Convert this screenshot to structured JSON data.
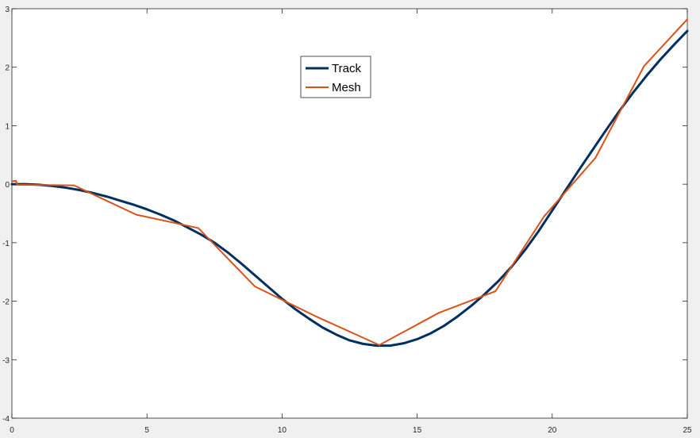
{
  "chart_data": {
    "type": "line",
    "title": "",
    "xlabel": "",
    "ylabel": "",
    "xlim": [
      0,
      25
    ],
    "ylim": [
      -4,
      3
    ],
    "xticks": [
      0,
      5,
      10,
      15,
      20,
      25
    ],
    "yticks": [
      -4,
      -3,
      -2,
      -1,
      0,
      1,
      2,
      3
    ],
    "grid": false,
    "legend": {
      "position": "top-center",
      "entries": [
        "Track",
        "Mesh"
      ]
    },
    "series": [
      {
        "name": "Track",
        "color": "#00305f",
        "x": [
          0,
          0.5,
          1,
          1.5,
          2,
          2.5,
          3,
          3.5,
          4,
          4.5,
          5,
          5.5,
          6,
          6.5,
          7,
          7.5,
          8,
          8.5,
          9,
          9.5,
          10,
          10.5,
          11,
          11.5,
          12,
          12.5,
          13,
          13.5,
          14,
          14.5,
          15,
          15.5,
          16,
          16.5,
          17,
          17.5,
          18,
          18.5,
          19,
          19.5,
          20,
          20.5,
          21,
          21.5,
          22,
          22.5,
          23,
          23.5,
          24,
          24.5,
          25
        ],
        "y": [
          0,
          0,
          -0.01,
          -0.03,
          -0.06,
          -0.1,
          -0.15,
          -0.21,
          -0.28,
          -0.35,
          -0.43,
          -0.52,
          -0.62,
          -0.74,
          -0.86,
          -1.0,
          -1.17,
          -1.36,
          -1.56,
          -1.76,
          -1.96,
          -2.14,
          -2.3,
          -2.45,
          -2.57,
          -2.67,
          -2.73,
          -2.76,
          -2.76,
          -2.72,
          -2.65,
          -2.55,
          -2.42,
          -2.26,
          -2.08,
          -1.88,
          -1.66,
          -1.41,
          -1.12,
          -0.8,
          -0.45,
          -0.1,
          0.25,
          0.59,
          0.93,
          1.26,
          1.57,
          1.86,
          2.13,
          2.38,
          2.62
        ]
      },
      {
        "name": "Mesh",
        "color": "#d95319",
        "x": [
          0,
          0.15,
          0.2,
          2.3,
          4.6,
          6.9,
          9.0,
          11.3,
          13.6,
          15.8,
          17.9,
          19.7,
          21.6,
          23.4,
          25
        ],
        "y": [
          0.05,
          0.06,
          -0.01,
          -0.02,
          -0.52,
          -0.75,
          -1.75,
          -2.27,
          -2.75,
          -2.2,
          -1.83,
          -0.55,
          0.45,
          2.02,
          2.82
        ]
      }
    ]
  }
}
